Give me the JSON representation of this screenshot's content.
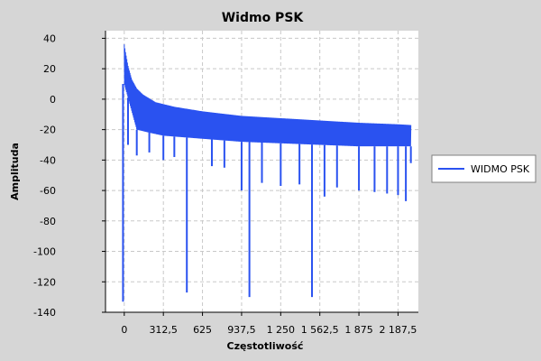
{
  "chart_data": {
    "type": "line",
    "title": "Widmo PSK",
    "xlabel": "Częstotliwość",
    "ylabel": "Amplituda",
    "xlim": [
      -150,
      2350
    ],
    "ylim": [
      -140,
      45
    ],
    "x_ticks": [
      0,
      312.5,
      625,
      937.5,
      1250,
      1562.5,
      1875,
      2187.5
    ],
    "x_tick_labels": [
      "0",
      "312,5",
      "625",
      "937,5",
      "1 250",
      "1 562,5",
      "1 875",
      "2 187,5"
    ],
    "y_ticks": [
      40,
      20,
      0,
      -20,
      -40,
      -60,
      -80,
      -100,
      -120,
      -140
    ],
    "y_tick_labels": [
      "40",
      "20",
      "0",
      "-20",
      "-40",
      "-60",
      "-80",
      "-100",
      "-120",
      "-140"
    ],
    "grid": true,
    "legend_position": "right",
    "colors": {
      "series": "#2a52f0",
      "plot_bg": "#ffffff",
      "panel_bg": "#d6d6d6",
      "grid": "#c8c8c8"
    },
    "series": [
      {
        "name": "WIDMO PSK",
        "envelope_top": [
          [
            0,
            36
          ],
          [
            10,
            31
          ],
          [
            30,
            22
          ],
          [
            60,
            13
          ],
          [
            100,
            7
          ],
          [
            150,
            3
          ],
          [
            250,
            -2
          ],
          [
            400,
            -5
          ],
          [
            625,
            -8
          ],
          [
            937.5,
            -11
          ],
          [
            1250,
            -12.5
          ],
          [
            1562.5,
            -14
          ],
          [
            1875,
            -15.5
          ],
          [
            2187.5,
            -16.5
          ],
          [
            2290,
            -17
          ]
        ],
        "envelope_bottom": [
          [
            0,
            10
          ],
          [
            100,
            -20
          ],
          [
            200,
            -22
          ],
          [
            312.5,
            -24
          ],
          [
            625,
            -26
          ],
          [
            937.5,
            -28
          ],
          [
            1250,
            -29
          ],
          [
            1562.5,
            -30
          ],
          [
            1875,
            -31
          ],
          [
            2187.5,
            -31
          ],
          [
            2290,
            -31
          ]
        ],
        "dips": [
          [
            -10,
            -133
          ],
          [
            30,
            -30
          ],
          [
            100,
            -37
          ],
          [
            200,
            -35
          ],
          [
            312.5,
            -40
          ],
          [
            400,
            -38
          ],
          [
            500,
            -127
          ],
          [
            700,
            -44
          ],
          [
            800,
            -45
          ],
          [
            937.5,
            -60
          ],
          [
            1000,
            -130
          ],
          [
            1100,
            -55
          ],
          [
            1250,
            -57
          ],
          [
            1400,
            -56
          ],
          [
            1500,
            -130
          ],
          [
            1600,
            -64
          ],
          [
            1700,
            -58
          ],
          [
            1875,
            -60
          ],
          [
            2000,
            -61
          ],
          [
            2100,
            -62
          ],
          [
            2187.5,
            -63
          ],
          [
            2250,
            -67
          ],
          [
            2290,
            -42
          ]
        ]
      }
    ]
  }
}
